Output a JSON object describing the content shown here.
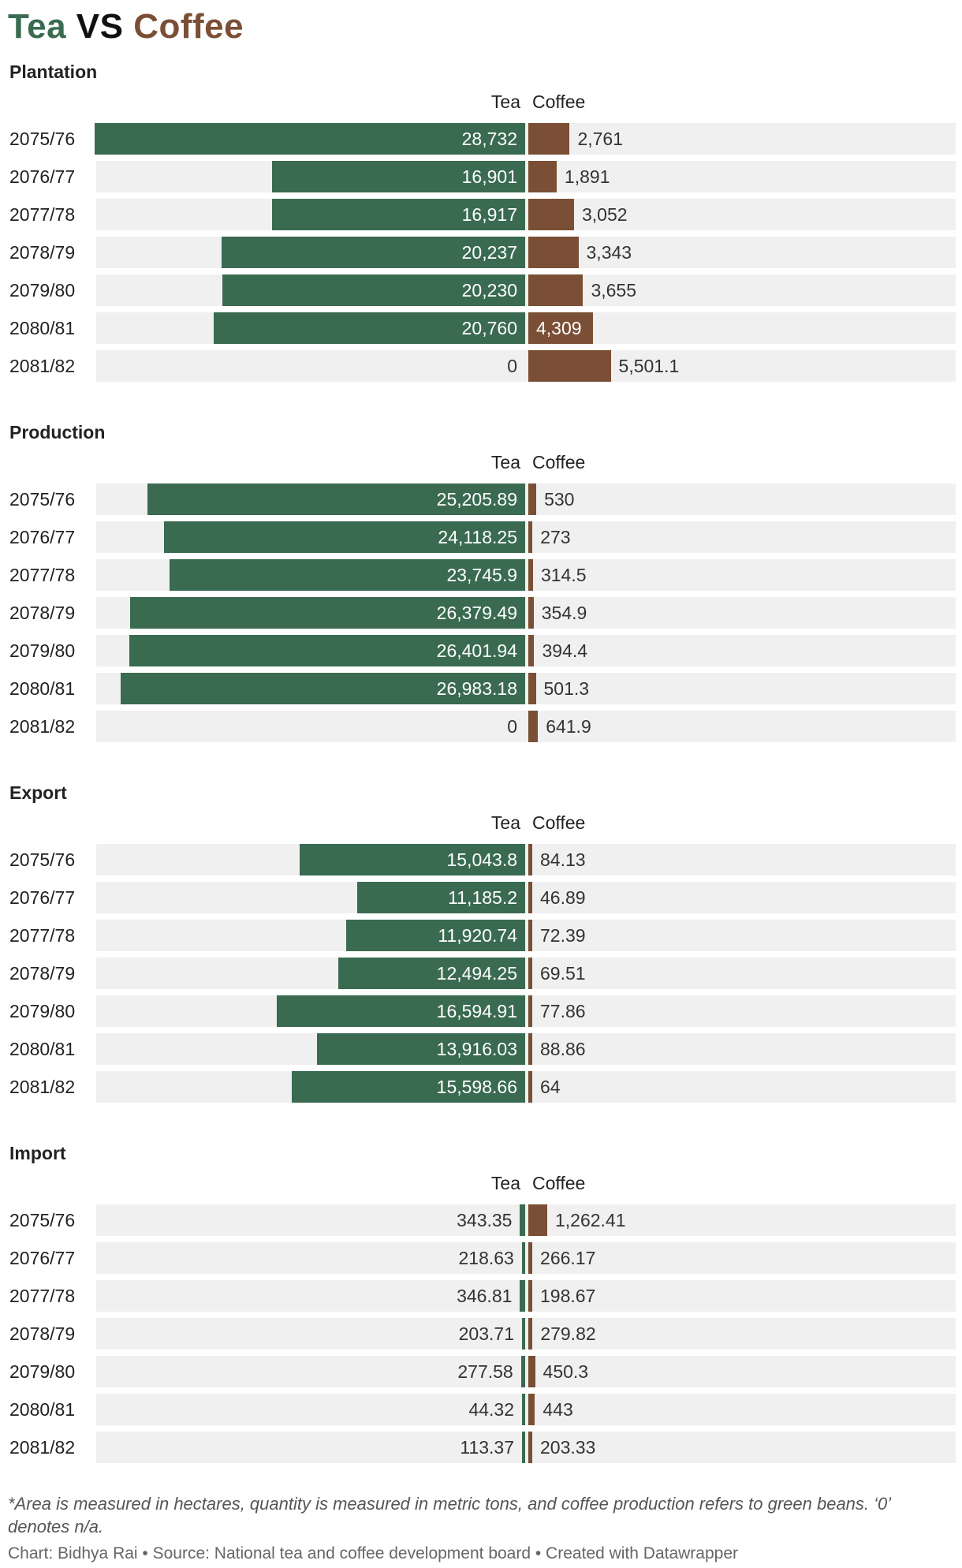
{
  "title": {
    "part1": "Tea",
    "part2": " VS ",
    "part3": "Coffee",
    "color_tea": "#3a6b50",
    "color_vs": "#111111",
    "color_coffee": "#7a4f35"
  },
  "colors": {
    "tea": "#3a6b50",
    "coffee": "#7a4f35",
    "row_bg": "#f0f0f0"
  },
  "chart_data": [
    {
      "type": "bar",
      "title": "Plantation",
      "column_labels": {
        "tea": "Tea",
        "coffee": "Coffee"
      },
      "categories": [
        "2075/76",
        "2076/77",
        "2077/78",
        "2078/79",
        "2079/80",
        "2080/81",
        "2081/82"
      ],
      "series": [
        {
          "name": "Tea",
          "values": [
            28732,
            16901,
            16917,
            20237,
            20230,
            20760,
            0
          ],
          "labels": [
            "28,732",
            "16,901",
            "16,917",
            "20,237",
            "20,230",
            "20,760",
            "0"
          ]
        },
        {
          "name": "Coffee",
          "values": [
            2761,
            1891,
            3052,
            3343,
            3655,
            4309,
            5501.1
          ],
          "labels": [
            "2,761",
            "1,891",
            "3,052",
            "3,343",
            "3,655",
            "4,309",
            "5,501.1"
          ]
        }
      ]
    },
    {
      "type": "bar",
      "title": "Production",
      "column_labels": {
        "tea": "Tea",
        "coffee": "Coffee"
      },
      "categories": [
        "2075/76",
        "2076/77",
        "2077/78",
        "2078/79",
        "2079/80",
        "2080/81",
        "2081/82"
      ],
      "series": [
        {
          "name": "Tea",
          "values": [
            25205.89,
            24118.25,
            23745.9,
            26379.49,
            26401.94,
            26983.18,
            0
          ],
          "labels": [
            "25,205.89",
            "24,118.25",
            "23,745.9",
            "26,379.49",
            "26,401.94",
            "26,983.18",
            "0"
          ]
        },
        {
          "name": "Coffee",
          "values": [
            530,
            273,
            314.5,
            354.9,
            394.4,
            501.3,
            641.9
          ],
          "labels": [
            "530",
            "273",
            "314.5",
            "354.9",
            "394.4",
            "501.3",
            "641.9"
          ]
        }
      ]
    },
    {
      "type": "bar",
      "title": "Export",
      "column_labels": {
        "tea": "Tea",
        "coffee": "Coffee"
      },
      "categories": [
        "2075/76",
        "2076/77",
        "2077/78",
        "2078/79",
        "2079/80",
        "2080/81",
        "2081/82"
      ],
      "series": [
        {
          "name": "Tea",
          "values": [
            15043.8,
            11185.2,
            11920.74,
            12494.25,
            16594.91,
            13916.03,
            15598.66
          ],
          "labels": [
            "15,043.8",
            "11,185.2",
            "11,920.74",
            "12,494.25",
            "16,594.91",
            "13,916.03",
            "15,598.66"
          ]
        },
        {
          "name": "Coffee",
          "values": [
            84.13,
            46.89,
            72.39,
            69.51,
            77.86,
            88.86,
            64
          ],
          "labels": [
            "84.13",
            "46.89",
            "72.39",
            "69.51",
            "77.86",
            "88.86",
            "64"
          ]
        }
      ]
    },
    {
      "type": "bar",
      "title": "Import",
      "column_labels": {
        "tea": "Tea",
        "coffee": "Coffee"
      },
      "categories": [
        "2075/76",
        "2076/77",
        "2077/78",
        "2078/79",
        "2079/80",
        "2080/81",
        "2081/82"
      ],
      "series": [
        {
          "name": "Tea",
          "values": [
            343.35,
            218.63,
            346.81,
            203.71,
            277.58,
            44.32,
            113.37
          ],
          "labels": [
            "343.35",
            "218.63",
            "346.81",
            "203.71",
            "277.58",
            "44.32",
            "113.37"
          ]
        },
        {
          "name": "Coffee",
          "values": [
            1262.41,
            266.17,
            198.67,
            279.82,
            450.3,
            443,
            203.33
          ],
          "labels": [
            "1,262.41",
            "266.17",
            "198.67",
            "279.82",
            "450.3",
            "443",
            "203.33"
          ]
        }
      ]
    }
  ],
  "footnote": "*Area is measured in hectares, quantity is measured in metric tons, and coffee production refers to green beans. ‘0’ denotes n/a.",
  "credits": "Chart: Bidhya Rai • Source: National tea and coffee development board • Created with Datawrapper"
}
